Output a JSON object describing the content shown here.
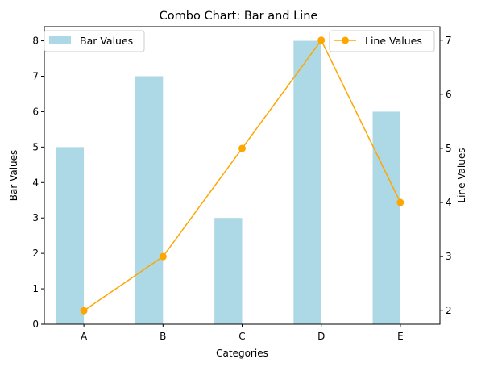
{
  "chart_data": {
    "type": "combo",
    "title": "Combo Chart: Bar and Line",
    "xlabel": "Categories",
    "categories": [
      "A",
      "B",
      "C",
      "D",
      "E"
    ],
    "series": [
      {
        "name": "Bar Values",
        "type": "bar",
        "axis": "left",
        "values": [
          5,
          7,
          3,
          8,
          6
        ],
        "color": "#add8e6"
      },
      {
        "name": "Line Values",
        "type": "line",
        "axis": "right",
        "values": [
          2,
          3,
          5,
          7,
          4
        ],
        "color": "#ffa500",
        "marker": "circle"
      }
    ],
    "y_left": {
      "label": "Bar Values",
      "ylim": [
        0,
        8.4
      ],
      "ticks": [
        0,
        1,
        2,
        3,
        4,
        5,
        6,
        7,
        8
      ]
    },
    "y_right": {
      "label": "Line Values",
      "ylim": [
        1.75,
        7.25
      ],
      "ticks": [
        2,
        3,
        4,
        5,
        6,
        7
      ]
    },
    "legend": [
      {
        "series": "Bar Values",
        "placement": "upper-left"
      },
      {
        "series": "Line Values",
        "placement": "upper-right"
      }
    ],
    "grid": false
  }
}
